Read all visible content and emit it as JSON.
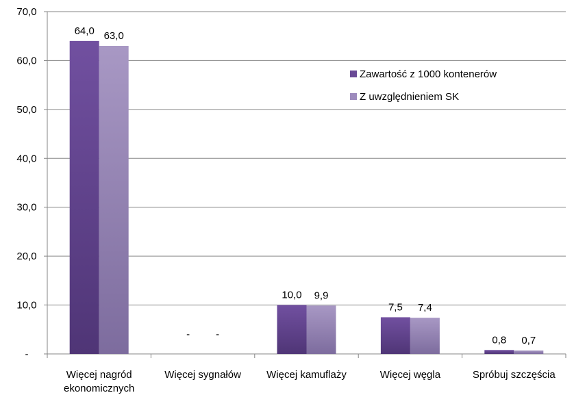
{
  "chart_data": {
    "type": "bar",
    "categories": [
      [
        "Więcej nagród",
        "ekonomicznych"
      ],
      [
        "Więcej sygnałów"
      ],
      [
        "Więcej kamuflaży"
      ],
      [
        "Więcej węgla"
      ],
      [
        "Spróbuj szczęścia"
      ]
    ],
    "series": [
      {
        "name": "Zawartość z 1000 kontenerów",
        "values": [
          64.0,
          0,
          10.0,
          7.5,
          0.8
        ],
        "labels": [
          "64,0",
          "-",
          "10,0",
          "7,5",
          "0,8"
        ],
        "color": "#6a4a96"
      },
      {
        "name": "Z uwzględnieniem  SK",
        "values": [
          63.0,
          0,
          9.9,
          7.4,
          0.7
        ],
        "labels": [
          "63,0",
          "-",
          "9,9",
          "7,4",
          "0,7"
        ],
        "color": "#9d8bbd"
      }
    ],
    "yticks": [
      "-",
      "10,0",
      "20,0",
      "30,0",
      "40,0",
      "50,0",
      "60,0",
      "70,0"
    ],
    "ylim": [
      0,
      70
    ],
    "grid": true,
    "legend": "right"
  }
}
